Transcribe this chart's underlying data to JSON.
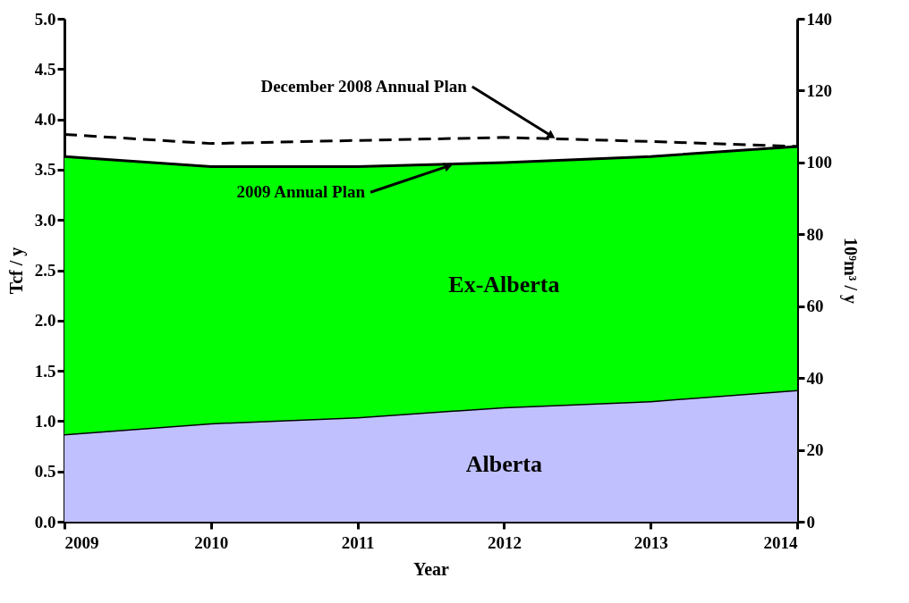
{
  "chart_data": {
    "type": "area",
    "stacked": true,
    "xlabel": "Year",
    "ylabel": "Tcf / y",
    "y2label": "10⁹m³ / y",
    "x": [
      2009,
      2010,
      2011,
      2012,
      2013,
      2014
    ],
    "xlim": [
      2009,
      2014
    ],
    "xticks": [
      2009,
      2010,
      2011,
      2012,
      2013,
      2014
    ],
    "ylim": [
      0,
      5
    ],
    "yticks": [
      {
        "value": 0,
        "label": "0.0"
      },
      0.5,
      {
        "value": 1,
        "label": "1.0"
      },
      1.5,
      {
        "value": 2,
        "label": "2.0"
      },
      2.5,
      {
        "value": 3,
        "label": "3.0"
      },
      3.5,
      {
        "value": 4,
        "label": "4.0"
      },
      4.5,
      {
        "value": 5,
        "label": "5.0"
      }
    ],
    "y2lim": [
      0,
      140
    ],
    "y2ticks": [
      0,
      20,
      40,
      60,
      80,
      100,
      120,
      140
    ],
    "grid": false,
    "series": [
      {
        "name": "Alberta",
        "color": "#c0c0ff",
        "values": [
          0.87,
          0.98,
          1.04,
          1.14,
          1.2,
          1.31
        ]
      },
      {
        "name": "Ex-Alberta",
        "color": "#00ff00",
        "values": [
          2.76,
          2.55,
          2.49,
          2.43,
          2.43,
          2.42
        ]
      },
      {
        "type": "line",
        "color": "#000000",
        "line_style": "dashed",
        "values": [
          3.85,
          3.76,
          3.79,
          3.82,
          3.78,
          3.73
        ]
      }
    ],
    "annotations": [
      {
        "text": "2009 Annual Plan",
        "x": 2011.65,
        "y": 3.55
      },
      {
        "text": "December 2008 Annual Plan",
        "x": 2012.35,
        "y": 3.81
      }
    ]
  }
}
